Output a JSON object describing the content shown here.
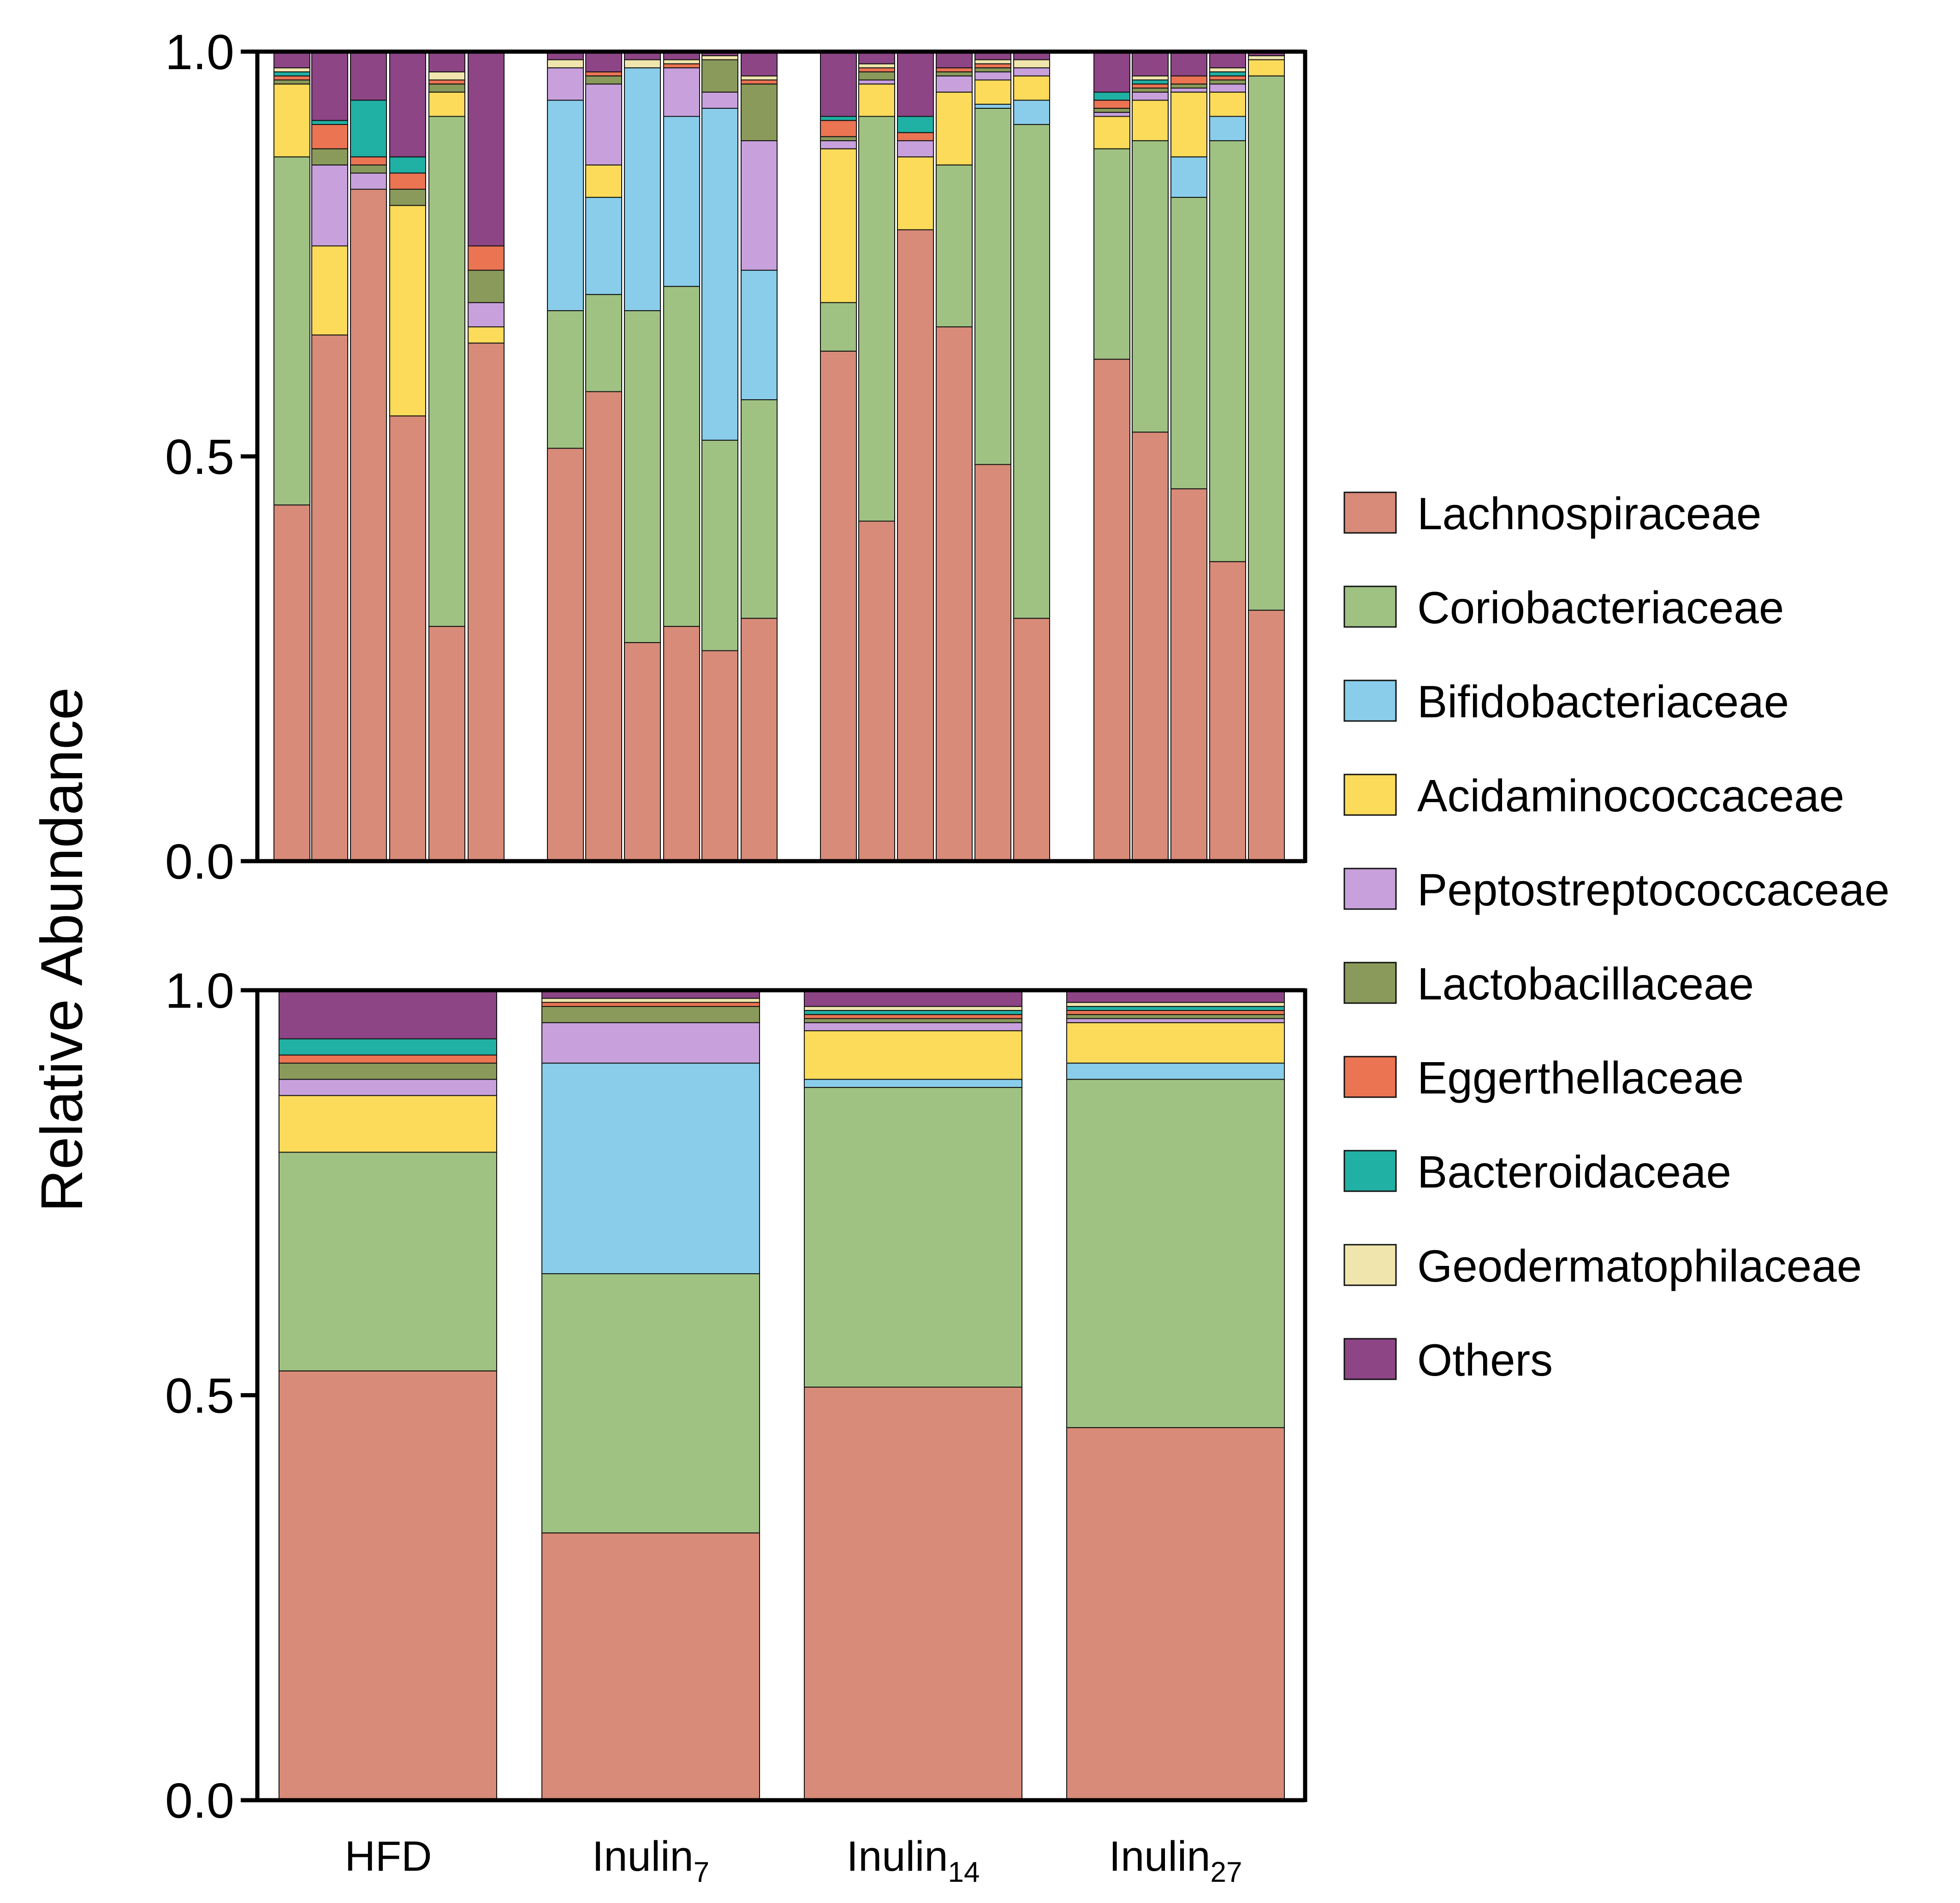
{
  "chart_data": {
    "type": "stacked-bar",
    "ylabel": "Relative Abundance",
    "ylim": [
      0,
      1
    ],
    "yticks": [
      "0.0",
      "0.5",
      "1.0"
    ],
    "families": [
      {
        "name": "Lachnospiraceae",
        "color": "#d88b78"
      },
      {
        "name": "Coriobacteriaceae",
        "color": "#9fc283"
      },
      {
        "name": "Bifidobacteriaceae",
        "color": "#89cdea"
      },
      {
        "name": "Acidaminococcaceae",
        "color": "#fcdb5a"
      },
      {
        "name": "Peptostreptococcaceae",
        "color": "#c8a1dc"
      },
      {
        "name": "Lactobacillaceae",
        "color": "#8a9a5b"
      },
      {
        "name": "Eggerthellaceae",
        "color": "#eb7453"
      },
      {
        "name": "Bacteroidaceae",
        "color": "#21b0a4"
      },
      {
        "name": "Geodermatophilaceae",
        "color": "#f0e6ad"
      },
      {
        "name": "Others",
        "color": "#8d4585"
      }
    ],
    "groups": [
      {
        "name": "HFD",
        "sub": ""
      },
      {
        "name": "Inulin",
        "sub": "7"
      },
      {
        "name": "Inulin",
        "sub": "14"
      },
      {
        "name": "Inulin",
        "sub": "27"
      }
    ],
    "panels": [
      {
        "id": "individual",
        "groups": [
          [
            [
              0.44,
              0.43,
              0.0,
              0.09,
              0.0,
              0.005,
              0.005,
              0.005,
              0.005,
              0.02
            ],
            [
              0.65,
              0.0,
              0.0,
              0.11,
              0.1,
              0.02,
              0.03,
              0.005,
              0.0,
              0.085
            ],
            [
              0.83,
              0.0,
              0.0,
              0.0,
              0.02,
              0.01,
              0.01,
              0.07,
              0.0,
              0.06
            ],
            [
              0.55,
              0.0,
              0.0,
              0.26,
              0.0,
              0.02,
              0.02,
              0.02,
              0.0,
              0.13
            ],
            [
              0.29,
              0.63,
              0.0,
              0.03,
              0.0,
              0.01,
              0.005,
              0.0,
              0.01,
              0.025
            ],
            [
              0.64,
              0.0,
              0.0,
              0.02,
              0.03,
              0.04,
              0.03,
              0.0,
              0.0,
              0.24
            ]
          ],
          [
            [
              0.51,
              0.17,
              0.26,
              0.0,
              0.04,
              0.0,
              0.0,
              0.0,
              0.01,
              0.01
            ],
            [
              0.58,
              0.12,
              0.12,
              0.04,
              0.1,
              0.01,
              0.005,
              0.0,
              0.0,
              0.025
            ],
            [
              0.27,
              0.41,
              0.3,
              0.0,
              0.0,
              0.0,
              0.0,
              0.0,
              0.01,
              0.01
            ],
            [
              0.29,
              0.42,
              0.21,
              0.0,
              0.06,
              0.0,
              0.005,
              0.0,
              0.005,
              0.01
            ],
            [
              0.26,
              0.26,
              0.41,
              0.0,
              0.02,
              0.04,
              0.0,
              0.0,
              0.005,
              0.005
            ],
            [
              0.3,
              0.27,
              0.16,
              0.0,
              0.16,
              0.07,
              0.005,
              0.0,
              0.005,
              0.03
            ]
          ],
          [
            [
              0.63,
              0.06,
              0.0,
              0.19,
              0.01,
              0.005,
              0.02,
              0.005,
              0.0,
              0.08
            ],
            [
              0.42,
              0.5,
              0.0,
              0.04,
              0.005,
              0.01,
              0.005,
              0.0,
              0.005,
              0.015
            ],
            [
              0.78,
              0.0,
              0.0,
              0.09,
              0.02,
              0.0,
              0.01,
              0.02,
              0.0,
              0.08
            ],
            [
              0.66,
              0.2,
              0.0,
              0.09,
              0.02,
              0.005,
              0.005,
              0.0,
              0.0,
              0.02
            ],
            [
              0.49,
              0.44,
              0.005,
              0.03,
              0.01,
              0.005,
              0.005,
              0.0,
              0.005,
              0.01
            ],
            [
              0.3,
              0.61,
              0.03,
              0.03,
              0.01,
              0.0,
              0.0,
              0.0,
              0.01,
              0.01
            ]
          ],
          [
            [
              0.62,
              0.26,
              0.0,
              0.04,
              0.005,
              0.005,
              0.01,
              0.01,
              0.0,
              0.05
            ],
            [
              0.53,
              0.36,
              0.0,
              0.05,
              0.01,
              0.005,
              0.005,
              0.005,
              0.005,
              0.03
            ],
            [
              0.46,
              0.36,
              0.05,
              0.08,
              0.005,
              0.005,
              0.01,
              0.0,
              0.0,
              0.03
            ],
            [
              0.37,
              0.52,
              0.03,
              0.03,
              0.01,
              0.005,
              0.005,
              0.005,
              0.005,
              0.02
            ],
            [
              0.31,
              0.66,
              0.0,
              0.02,
              0.0,
              0.0,
              0.0,
              0.0,
              0.005,
              0.005
            ]
          ]
        ]
      },
      {
        "id": "mean",
        "groups": [
          [
            [
              0.53,
              0.27,
              0.0,
              0.07,
              0.02,
              0.02,
              0.01,
              0.02,
              0.0,
              0.06
            ]
          ],
          [
            [
              0.33,
              0.32,
              0.26,
              0.0,
              0.05,
              0.02,
              0.005,
              0.0,
              0.005,
              0.01
            ]
          ],
          [
            [
              0.51,
              0.37,
              0.01,
              0.06,
              0.01,
              0.005,
              0.005,
              0.005,
              0.005,
              0.03
            ]
          ],
          [
            [
              0.46,
              0.43,
              0.02,
              0.05,
              0.005,
              0.005,
              0.005,
              0.005,
              0.005,
              0.015
            ]
          ]
        ]
      }
    ]
  }
}
